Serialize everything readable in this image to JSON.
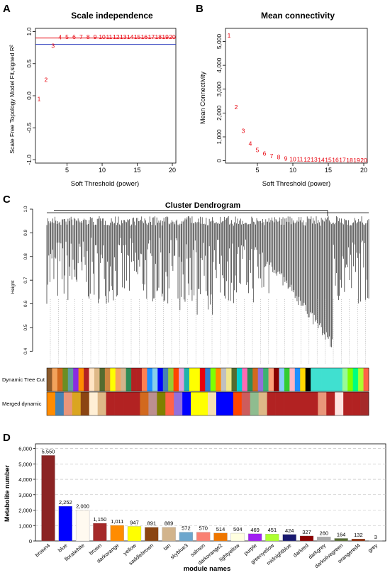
{
  "panels": [
    {
      "letter": "A"
    },
    {
      "letter": "B"
    },
    {
      "letter": "C"
    },
    {
      "letter": "D"
    }
  ],
  "chart_data": [
    {
      "type": "scatter",
      "panel": "A",
      "title": "Scale independence",
      "xlabel": "Soft Threshold (power)",
      "ylabel": "Scale Free Topology Model Fit,signed R²",
      "xlim": [
        0.5,
        20.5
      ],
      "ylim": [
        -1.05,
        1.05
      ],
      "xticks": [
        5,
        10,
        15,
        20
      ],
      "yticks": [
        -1.0,
        -0.5,
        0.0,
        0.5,
        1.0
      ],
      "ytick_labels": [
        "-1.0",
        "-0.5",
        "0.0",
        "0.5",
        "1.0"
      ],
      "hlines": [
        {
          "y": 0.9,
          "color": "#e8000b"
        },
        {
          "y": 0.8,
          "color": "#2f3fbf"
        }
      ],
      "points": [
        {
          "x": 1,
          "y": -0.05,
          "label": "1"
        },
        {
          "x": 2,
          "y": 0.25,
          "label": "2"
        },
        {
          "x": 3,
          "y": 0.78,
          "label": "3"
        },
        {
          "x": 4,
          "y": 0.91,
          "label": "4"
        },
        {
          "x": 5,
          "y": 0.92,
          "label": "5"
        },
        {
          "x": 6,
          "y": 0.92,
          "label": "6"
        },
        {
          "x": 7,
          "y": 0.92,
          "label": "7"
        },
        {
          "x": 8,
          "y": 0.92,
          "label": "8"
        },
        {
          "x": 9,
          "y": 0.92,
          "label": "9"
        },
        {
          "x": 10,
          "y": 0.92,
          "label": "10"
        },
        {
          "x": 11,
          "y": 0.92,
          "label": "11"
        },
        {
          "x": 12,
          "y": 0.92,
          "label": "12"
        },
        {
          "x": 13,
          "y": 0.92,
          "label": "13"
        },
        {
          "x": 14,
          "y": 0.92,
          "label": "14"
        },
        {
          "x": 15,
          "y": 0.92,
          "label": "15"
        },
        {
          "x": 16,
          "y": 0.92,
          "label": "16"
        },
        {
          "x": 17,
          "y": 0.92,
          "label": "17"
        },
        {
          "x": 18,
          "y": 0.92,
          "label": "18"
        },
        {
          "x": 19,
          "y": 0.92,
          "label": "19"
        },
        {
          "x": 20,
          "y": 0.92,
          "label": "20"
        }
      ],
      "point_color": "#e8000b"
    },
    {
      "type": "scatter",
      "panel": "B",
      "title": "Mean connectivity",
      "xlabel": "Soft Threshold (power)",
      "ylabel": "Mean Connectivity",
      "xlim": [
        0.5,
        20.5
      ],
      "ylim": [
        -100,
        5550
      ],
      "xticks": [
        5,
        10,
        15,
        20
      ],
      "yticks": [
        0,
        1000,
        2000,
        3000,
        4000,
        5000
      ],
      "ytick_labels": [
        "0",
        "1,000",
        "2,000",
        "3,000",
        "4,000",
        "5,000"
      ],
      "points": [
        {
          "x": 1,
          "y": 5250,
          "label": "1"
        },
        {
          "x": 2,
          "y": 2250,
          "label": "2"
        },
        {
          "x": 3,
          "y": 1250,
          "label": "3"
        },
        {
          "x": 4,
          "y": 720,
          "label": "4"
        },
        {
          "x": 5,
          "y": 450,
          "label": "5"
        },
        {
          "x": 6,
          "y": 300,
          "label": "6"
        },
        {
          "x": 7,
          "y": 200,
          "label": "7"
        },
        {
          "x": 8,
          "y": 150,
          "label": "8"
        },
        {
          "x": 9,
          "y": 100,
          "label": "9"
        },
        {
          "x": 10,
          "y": 70,
          "label": "10"
        },
        {
          "x": 11,
          "y": 60,
          "label": "11"
        },
        {
          "x": 12,
          "y": 50,
          "label": "12"
        },
        {
          "x": 13,
          "y": 45,
          "label": "13"
        },
        {
          "x": 14,
          "y": 40,
          "label": "14"
        },
        {
          "x": 15,
          "y": 35,
          "label": "15"
        },
        {
          "x": 16,
          "y": 30,
          "label": "16"
        },
        {
          "x": 17,
          "y": 28,
          "label": "17"
        },
        {
          "x": 18,
          "y": 25,
          "label": "18"
        },
        {
          "x": 19,
          "y": 22,
          "label": "19"
        },
        {
          "x": 20,
          "y": 20,
          "label": "20"
        }
      ],
      "point_color": "#e8000b"
    },
    {
      "type": "dendrogram",
      "panel": "C",
      "title": "Cluster Dendrogram",
      "ylabel": "Height",
      "ylim": [
        0.38,
        1.0
      ],
      "yticks": [
        0.4,
        0.5,
        0.6,
        0.7,
        0.8,
        0.9,
        1.0
      ],
      "ytick_labels": [
        "0.4",
        "0.5",
        "0.6",
        "0.7",
        "0.8",
        "0.9",
        "1.0"
      ],
      "color_rows": [
        {
          "label": "Dynamic Tree Cut",
          "colors": [
            "#8c5a2b",
            "#f2a35c",
            "#d2691e",
            "#6b8e23",
            "#5f9ea0",
            "#8a2be2",
            "#ff8c00",
            "#b22222",
            "#ffe4c4",
            "#deb887",
            "#556b2f",
            "#cd853f",
            "#ffff00",
            "#f4a460",
            "#d2b48c",
            "#2e8b57",
            "#b22222",
            "#b22222",
            "#ff7f50",
            "#1e90ff",
            "#87ceeb",
            "#0000ff",
            "#4682b4",
            "#9acd32",
            "#ff4500",
            "#dda0dd",
            "#20b2aa",
            "#ffff00",
            "#ffff00",
            "#e8000b",
            "#2f7fd0",
            "#7fff00",
            "#ff8c00",
            "#c0c0c0",
            "#f0e68c",
            "#556b2f",
            "#00ced1",
            "#ff69b4",
            "#2e8b57",
            "#d2691e",
            "#9370db",
            "#3cb371",
            "#ffa07a",
            "#8b0000",
            "#87cefa",
            "#32cd32",
            "#ffb6c1",
            "#1e90ff",
            "#ffd700",
            "#000000",
            "#40e0d0",
            "#40e0d0",
            "#40e0d0",
            "#40e0d0",
            "#40e0d0",
            "#40e0d0",
            "#98fb98",
            "#7fff00",
            "#00ff7f",
            "#adff2f",
            "#ff6347"
          ]
        },
        {
          "label": "Merged dynamic",
          "colors": [
            "#ff8c00",
            "#4682b4",
            "#e9967a",
            "#daa520",
            "#8b4513",
            "#ffefd5",
            "#deb887",
            "#b22222",
            "#b22222",
            "#b22222",
            "#b22222",
            "#d2691e",
            "#bc8f8f",
            "#808000",
            "#ff6347",
            "#9370db",
            "#0000ff",
            "#ffff00",
            "#ffff00",
            "#f5deb3",
            "#0000ff",
            "#0000ff",
            "#ff4500",
            "#cd5c5c",
            "#8fbc8f",
            "#deb887",
            "#b22222",
            "#b22222",
            "#b22222",
            "#b22222",
            "#b22222",
            "#b22222",
            "#e9967a",
            "#b22222",
            "#ffe4e1",
            "#b22222",
            "#b22222",
            "#a52a2a"
          ]
        }
      ]
    },
    {
      "type": "bar",
      "panel": "D",
      "xlabel": "module names",
      "ylabel": "Metabolite number",
      "ylim": [
        0,
        6300
      ],
      "yticks": [
        0,
        1000,
        2000,
        3000,
        4000,
        5000,
        6000
      ],
      "ytick_labels": [
        "0",
        "1,000",
        "2,000",
        "3,000",
        "4,000",
        "5,000",
        "6,000"
      ],
      "categories": [
        "brown4",
        "blue",
        "floralwhite",
        "brown",
        "darkorange",
        "yellow",
        "saddlebrown",
        "tan",
        "skyblue3",
        "salmon",
        "darkorange2",
        "lightyellow",
        "purple",
        "greenyellow",
        "midnightblue",
        "darkred",
        "darkgrey",
        "darkolivegreen",
        "orangered4",
        "grey"
      ],
      "values": [
        5550,
        2252,
        2000,
        1150,
        1011,
        947,
        891,
        889,
        572,
        570,
        514,
        504,
        469,
        451,
        424,
        327,
        260,
        164,
        132,
        3
      ],
      "value_labels": [
        "5,550",
        "2,252",
        "2,000",
        "1,150",
        "1,011",
        "947",
        "891",
        "889",
        "572",
        "570",
        "514",
        "504",
        "469",
        "451",
        "424",
        "327",
        "260",
        "164",
        "132",
        "3"
      ],
      "colors": [
        "#8b2323",
        "#0000ff",
        "#fffaf0",
        "#a52a2a",
        "#ff8c00",
        "#ffff00",
        "#8b4513",
        "#d2b48c",
        "#6ca6cd",
        "#fa8072",
        "#ee7600",
        "#ffffe0",
        "#a020f0",
        "#adff2f",
        "#191970",
        "#8b0000",
        "#a9a9a9",
        "#556b2f",
        "#8b2500",
        "#bebebe"
      ]
    }
  ]
}
